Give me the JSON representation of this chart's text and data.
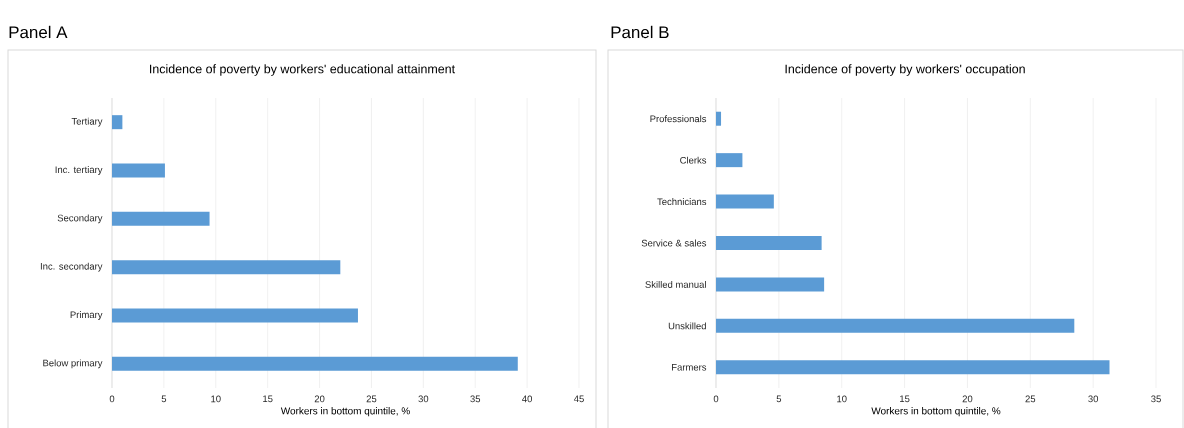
{
  "chart_data": [
    {
      "type": "bar",
      "orientation": "horizontal",
      "title": "Panel A",
      "subtitle": "Incidence of poverty by workers' educational attainment",
      "xlabel": "Workers in bottom quintile, %",
      "categories": [
        "Tertiary",
        "Inc. tertiary",
        "Secondary",
        "Inc. secondary",
        "Primary",
        "Below primary"
      ],
      "values": [
        1.0,
        5.1,
        9.4,
        22.0,
        23.7,
        39.1
      ],
      "color": "#5b9bd5",
      "xlim": [
        0,
        45
      ],
      "xticks": [
        0,
        5,
        10,
        15,
        20,
        25,
        30,
        35,
        40,
        45
      ],
      "grid": "x"
    },
    {
      "type": "bar",
      "orientation": "horizontal",
      "title": "Panel B",
      "subtitle": "Incidence of poverty by workers' occupation",
      "xlabel": "Workers in bottom quintile, %",
      "categories": [
        "Professionals",
        "Clerks",
        "Technicians",
        "Service & sales",
        "Skilled manual",
        "Unskilled",
        "Farmers"
      ],
      "values": [
        0.4,
        2.1,
        4.6,
        8.4,
        8.6,
        28.5,
        31.3
      ],
      "color": "#5b9bd5",
      "xlim": [
        0,
        35
      ],
      "xticks": [
        0,
        5,
        10,
        15,
        20,
        25,
        30,
        35
      ],
      "grid": "x"
    }
  ]
}
